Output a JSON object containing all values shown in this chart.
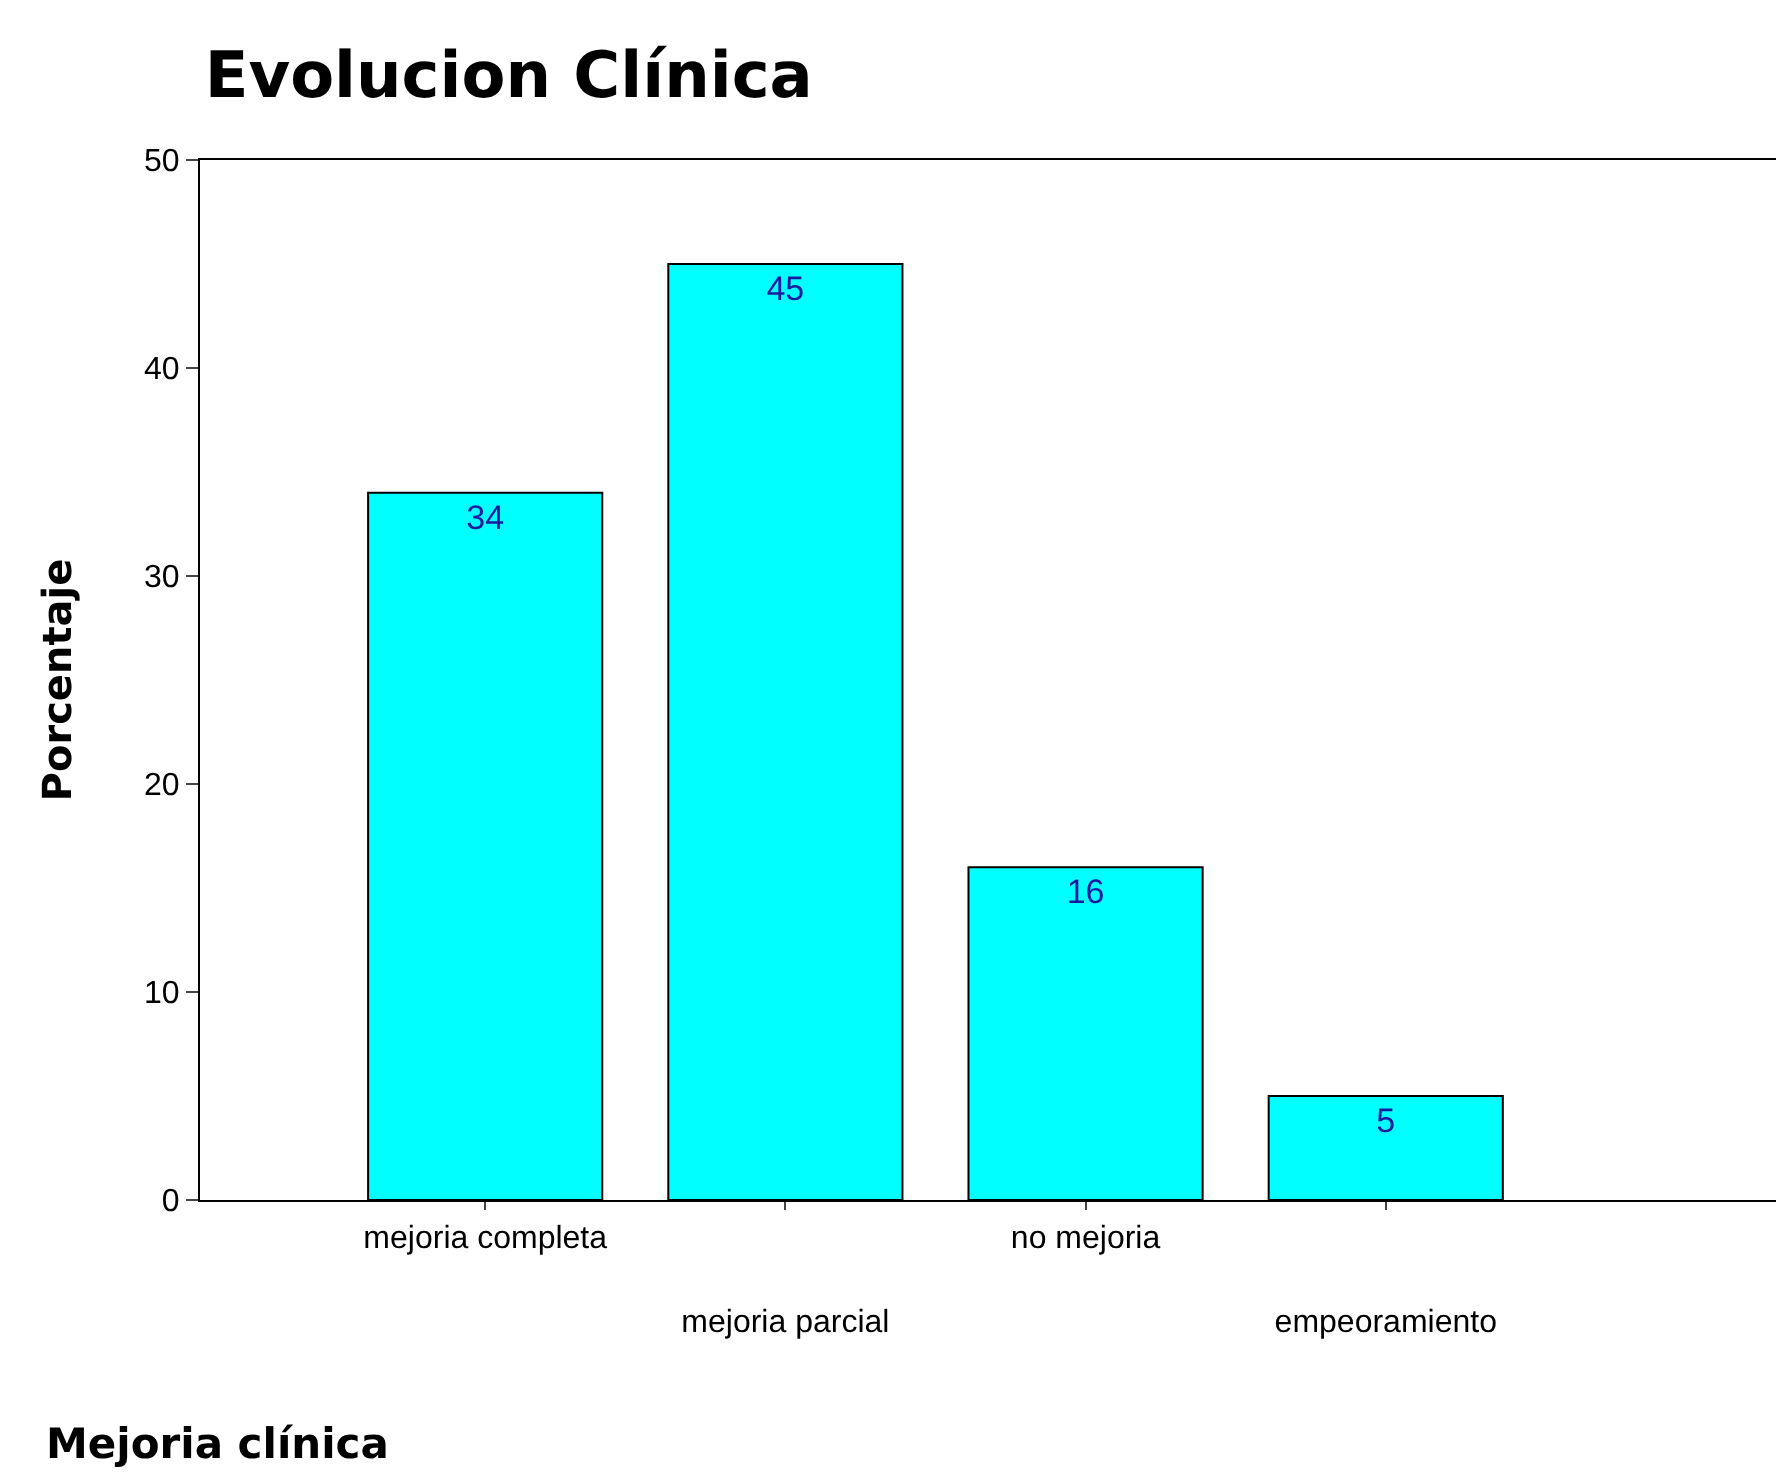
{
  "chart_data": {
    "type": "bar",
    "title": "Evolucion Clínica",
    "xlabel": "Mejoria clínica",
    "ylabel": "Porcentaje",
    "categories": [
      "mejoria completa",
      "mejoria parcial",
      "no mejoria",
      "empeoramiento"
    ],
    "values": [
      34,
      45,
      16,
      5
    ],
    "color": "#00ffff",
    "ylim": [
      0,
      50
    ],
    "yticks": [
      0,
      10,
      20,
      30,
      40,
      50
    ],
    "grid": false,
    "data_labels": true
  }
}
